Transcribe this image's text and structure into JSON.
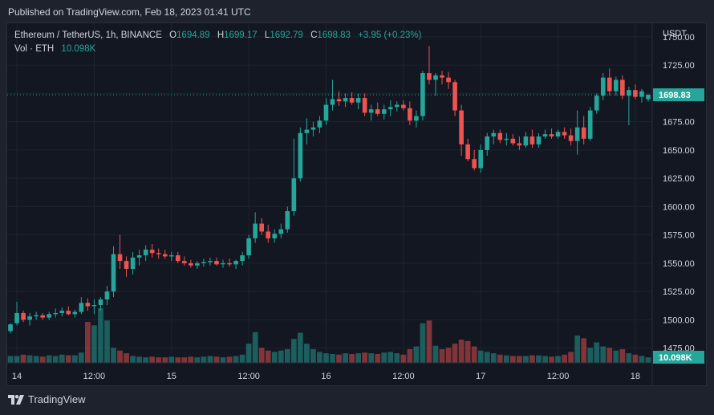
{
  "header": {
    "published_text": "Published on TradingView.com, Feb 18, 2023 01:41 UTC"
  },
  "legend": {
    "symbol": "Ethereum / TetherUS, 1h, BINANCE",
    "open_label": "O",
    "open_value": "1694.89",
    "high_label": "H",
    "high_value": "1699.17",
    "low_label": "L",
    "low_value": "1692.79",
    "close_label": "C",
    "close_value": "1698.83",
    "change_value": "+3.95 (+0.23%)",
    "vol_label": "Vol · ETH",
    "vol_value": "10.098K"
  },
  "footer": {
    "brand": "TradingView"
  },
  "colors": {
    "up": "#26a69a",
    "down": "#ef5350",
    "up_volume": "#26a69a",
    "down_volume": "#ef5350",
    "background": "#131722",
    "grid": "#1f2330",
    "text": "#d1d4dc"
  },
  "chart_data": {
    "type": "candlestick",
    "price_axis": {
      "label": "USDT",
      "min": 1462,
      "max": 1762,
      "ticks": [
        1475,
        1500,
        1525,
        1550,
        1575,
        1600,
        1625,
        1650,
        1675,
        1700,
        1725,
        1750
      ],
      "tick_labels": [
        "1475.00",
        "1500.00",
        "1525.00",
        "1550.00",
        "1575.00",
        "1600.00",
        "1625.00",
        "1650.00",
        "1675.00",
        "1700.00",
        "1725.00",
        "1750.00"
      ]
    },
    "last_price": 1698.83,
    "last_price_label": "1698.83",
    "last_volume_label": "10.098K",
    "time_axis": {
      "ticks": [
        {
          "label": "14",
          "index": 1
        },
        {
          "label": "12:00",
          "index": 13
        },
        {
          "label": "15",
          "index": 25
        },
        {
          "label": "12:00",
          "index": 37
        },
        {
          "label": "16",
          "index": 49
        },
        {
          "label": "12:00",
          "index": 61
        },
        {
          "label": "17",
          "index": 73
        },
        {
          "label": "12:00",
          "index": 85
        },
        {
          "label": "18",
          "index": 97
        }
      ]
    },
    "candles": [
      [
        1490,
        1497,
        1488,
        1496
      ],
      [
        1497,
        1516,
        1495,
        1506
      ],
      [
        1506,
        1508,
        1498,
        1500
      ],
      [
        1500,
        1506,
        1495,
        1503
      ],
      [
        1503,
        1507,
        1500,
        1504
      ],
      [
        1504,
        1506,
        1500,
        1502
      ],
      [
        1502,
        1507,
        1500,
        1505
      ],
      [
        1505,
        1510,
        1502,
        1506
      ],
      [
        1506,
        1511,
        1503,
        1508
      ],
      [
        1508,
        1512,
        1504,
        1505
      ],
      [
        1505,
        1509,
        1502,
        1507
      ],
      [
        1507,
        1520,
        1505,
        1515
      ],
      [
        1515,
        1519,
        1508,
        1512
      ],
      [
        1512,
        1518,
        1505,
        1513
      ],
      [
        1513,
        1520,
        1508,
        1518
      ],
      [
        1518,
        1530,
        1513,
        1525
      ],
      [
        1525,
        1565,
        1520,
        1558
      ],
      [
        1558,
        1575,
        1545,
        1552
      ],
      [
        1552,
        1556,
        1538,
        1545
      ],
      [
        1545,
        1560,
        1540,
        1555
      ],
      [
        1555,
        1562,
        1548,
        1557
      ],
      [
        1557,
        1566,
        1552,
        1562
      ],
      [
        1562,
        1567,
        1555,
        1559
      ],
      [
        1559,
        1563,
        1554,
        1558
      ],
      [
        1558,
        1562,
        1554,
        1556
      ],
      [
        1556,
        1560,
        1552,
        1557
      ],
      [
        1557,
        1560,
        1550,
        1552
      ],
      [
        1552,
        1556,
        1548,
        1550
      ],
      [
        1550,
        1553,
        1546,
        1548
      ],
      [
        1548,
        1552,
        1545,
        1550
      ],
      [
        1550,
        1554,
        1547,
        1551
      ],
      [
        1551,
        1555,
        1548,
        1552
      ],
      [
        1552,
        1555,
        1548,
        1549
      ],
      [
        1549,
        1553,
        1546,
        1550
      ],
      [
        1550,
        1554,
        1547,
        1549
      ],
      [
        1549,
        1553,
        1545,
        1552
      ],
      [
        1552,
        1560,
        1548,
        1557
      ],
      [
        1557,
        1575,
        1554,
        1572
      ],
      [
        1572,
        1595,
        1568,
        1585
      ],
      [
        1585,
        1590,
        1575,
        1578
      ],
      [
        1578,
        1584,
        1568,
        1572
      ],
      [
        1572,
        1580,
        1568,
        1576
      ],
      [
        1576,
        1585,
        1572,
        1580
      ],
      [
        1580,
        1600,
        1577,
        1596
      ],
      [
        1596,
        1660,
        1592,
        1625
      ],
      [
        1625,
        1670,
        1622,
        1665
      ],
      [
        1665,
        1678,
        1655,
        1668
      ],
      [
        1668,
        1675,
        1662,
        1670
      ],
      [
        1670,
        1680,
        1665,
        1676
      ],
      [
        1676,
        1696,
        1672,
        1690
      ],
      [
        1690,
        1712,
        1685,
        1695
      ],
      [
        1695,
        1702,
        1689,
        1693
      ],
      [
        1693,
        1700,
        1688,
        1696
      ],
      [
        1696,
        1701,
        1690,
        1692
      ],
      [
        1692,
        1700,
        1686,
        1696
      ],
      [
        1696,
        1700,
        1680,
        1683
      ],
      [
        1683,
        1690,
        1676,
        1686
      ],
      [
        1686,
        1692,
        1680,
        1682
      ],
      [
        1682,
        1690,
        1677,
        1686
      ],
      [
        1686,
        1694,
        1680,
        1688
      ],
      [
        1688,
        1693,
        1684,
        1690
      ],
      [
        1690,
        1694,
        1685,
        1687
      ],
      [
        1687,
        1693,
        1672,
        1676
      ],
      [
        1676,
        1685,
        1670,
        1680
      ],
      [
        1680,
        1720,
        1676,
        1718
      ],
      [
        1718,
        1742,
        1708,
        1712
      ],
      [
        1712,
        1718,
        1698,
        1716
      ],
      [
        1716,
        1720,
        1708,
        1714
      ],
      [
        1714,
        1719,
        1704,
        1710
      ],
      [
        1710,
        1712,
        1680,
        1685
      ],
      [
        1685,
        1690,
        1645,
        1655
      ],
      [
        1655,
        1660,
        1640,
        1642
      ],
      [
        1642,
        1650,
        1632,
        1634
      ],
      [
        1634,
        1655,
        1630,
        1650
      ],
      [
        1650,
        1665,
        1645,
        1662
      ],
      [
        1662,
        1668,
        1655,
        1665
      ],
      [
        1665,
        1668,
        1656,
        1659
      ],
      [
        1659,
        1665,
        1654,
        1660
      ],
      [
        1660,
        1664,
        1654,
        1656
      ],
      [
        1656,
        1662,
        1650,
        1654
      ],
      [
        1654,
        1666,
        1652,
        1662
      ],
      [
        1662,
        1668,
        1652,
        1655
      ],
      [
        1655,
        1665,
        1652,
        1662
      ],
      [
        1662,
        1668,
        1660,
        1664
      ],
      [
        1664,
        1669,
        1660,
        1662
      ],
      [
        1662,
        1668,
        1660,
        1666
      ],
      [
        1666,
        1670,
        1660,
        1663
      ],
      [
        1663,
        1669,
        1654,
        1658
      ],
      [
        1658,
        1685,
        1646,
        1670
      ],
      [
        1670,
        1680,
        1655,
        1660
      ],
      [
        1660,
        1688,
        1658,
        1685
      ],
      [
        1685,
        1700,
        1682,
        1698
      ],
      [
        1698,
        1718,
        1694,
        1714
      ],
      [
        1714,
        1722,
        1698,
        1702
      ],
      [
        1702,
        1715,
        1698,
        1712
      ],
      [
        1712,
        1716,
        1695,
        1698
      ],
      [
        1698,
        1706,
        1672,
        1703
      ],
      [
        1703,
        1708,
        1695,
        1697
      ],
      [
        1697,
        1704,
        1692,
        1702
      ],
      [
        1694.89,
        1699.17,
        1692.79,
        1698.83
      ]
    ],
    "volume_scale_max": 100,
    "volumes": [
      10,
      10,
      12,
      11,
      10,
      9,
      11,
      10,
      12,
      11,
      11,
      15,
      60,
      55,
      80,
      62,
      22,
      18,
      14,
      10,
      9,
      8,
      9,
      8,
      8,
      9,
      8,
      8,
      9,
      8,
      9,
      10,
      9,
      8,
      9,
      10,
      12,
      28,
      45,
      22,
      18,
      16,
      18,
      20,
      35,
      44,
      28,
      20,
      16,
      14,
      13,
      12,
      14,
      13,
      14,
      15,
      14,
      13,
      15,
      16,
      14,
      12,
      20,
      24,
      58,
      62,
      25,
      20,
      22,
      28,
      34,
      32,
      24,
      18,
      16,
      14,
      12,
      11,
      10,
      10,
      10,
      11,
      11,
      10,
      9,
      10,
      12,
      16,
      40,
      36,
      22,
      30,
      24,
      22,
      18,
      20,
      14,
      12,
      10,
      8
    ]
  }
}
